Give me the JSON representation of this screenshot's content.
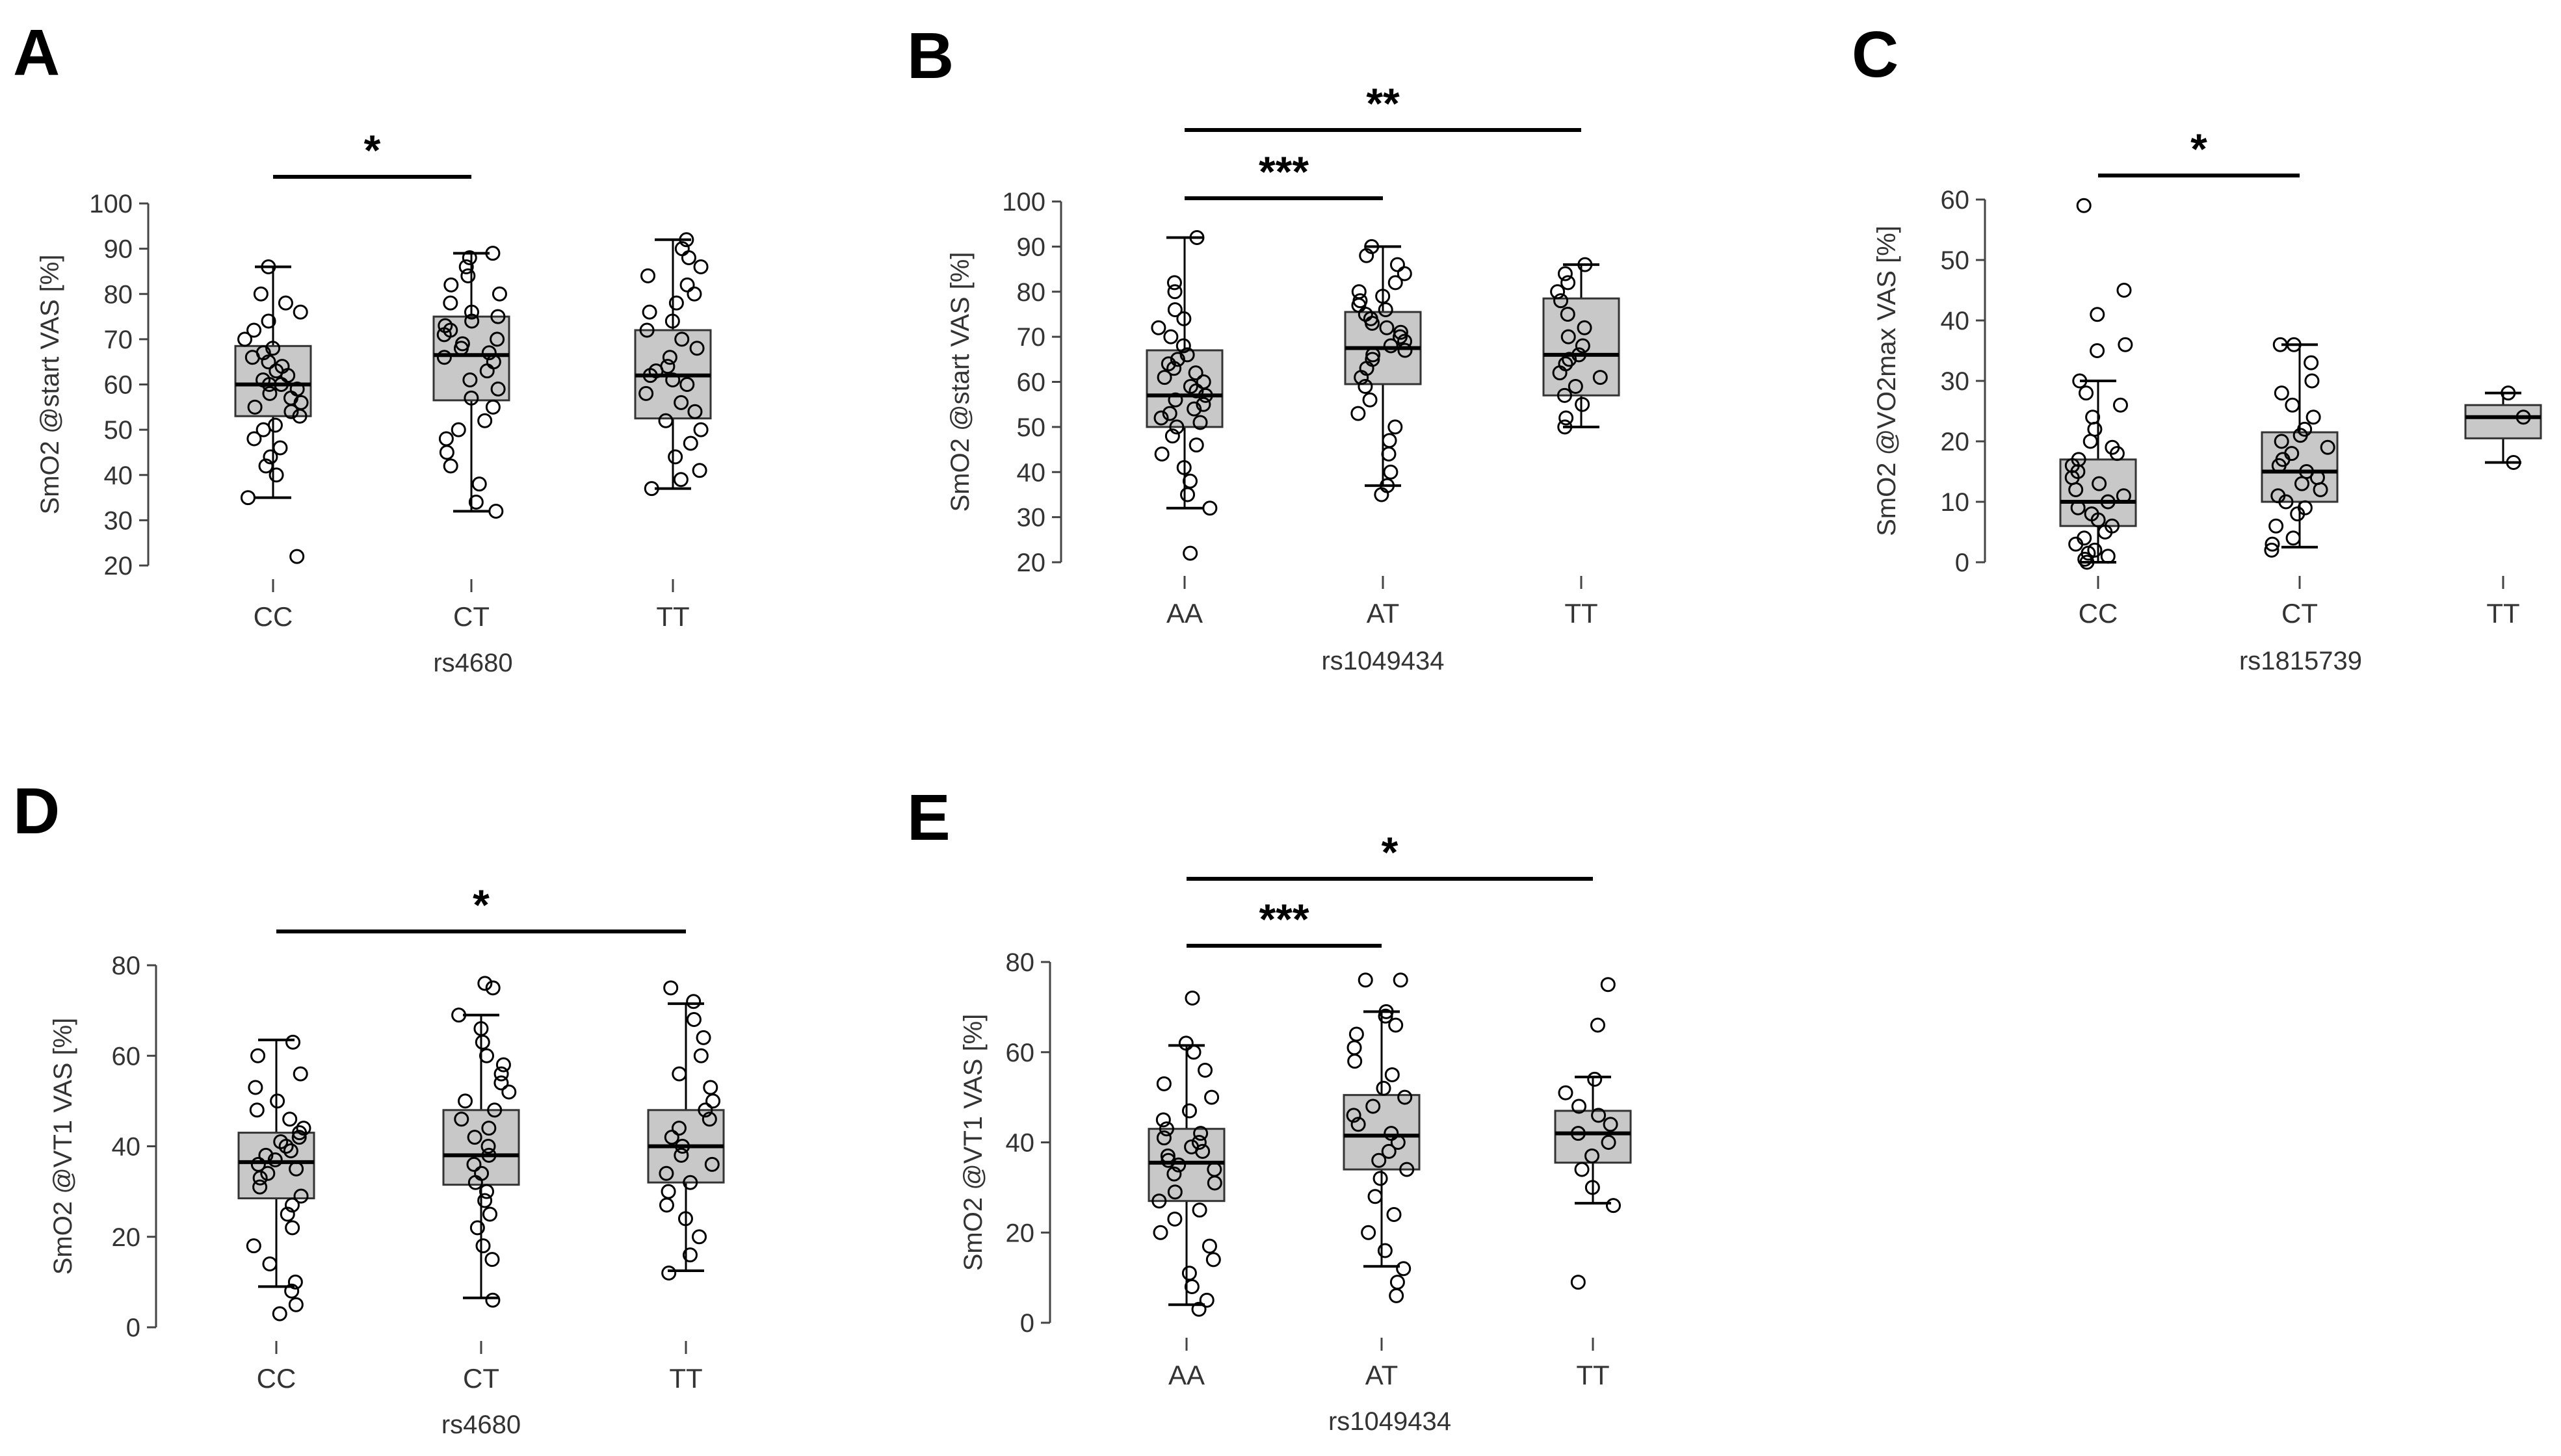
{
  "figure": {
    "background": "#ffffff",
    "box_fill": "#c8c8c8"
  },
  "chart_data": [
    {
      "panel": "A",
      "type": "box",
      "xlabel": "rs4680",
      "ylabel": "SmO2 @start VAS [%]",
      "ylim": [
        20,
        100
      ],
      "yticks": [
        20,
        30,
        40,
        50,
        60,
        70,
        80,
        90,
        100
      ],
      "categories": [
        "CC",
        "CT",
        "TT"
      ],
      "boxes": [
        {
          "category": "CC",
          "whisker_low": 35,
          "q1": 53,
          "median": 60,
          "q3": 68.5,
          "whisker_high": 86,
          "points": [
            22,
            35,
            40,
            42,
            44,
            46,
            48,
            50,
            51,
            53,
            54,
            55,
            56,
            57,
            58,
            59,
            60,
            60,
            61,
            62,
            63,
            64,
            65,
            66,
            67,
            68,
            70,
            72,
            74,
            76,
            78,
            80,
            86
          ]
        },
        {
          "category": "CT",
          "whisker_low": 32,
          "q1": 56.5,
          "median": 66.5,
          "q3": 75,
          "whisker_high": 89,
          "points": [
            32,
            34,
            38,
            42,
            45,
            48,
            50,
            52,
            55,
            57,
            59,
            61,
            63,
            65,
            66,
            67,
            68,
            69,
            70,
            71,
            72,
            73,
            74,
            75,
            76,
            78,
            80,
            82,
            84,
            86,
            88,
            89
          ]
        },
        {
          "category": "TT",
          "whisker_low": 37,
          "q1": 52.5,
          "median": 62,
          "q3": 72,
          "whisker_high": 92,
          "points": [
            37,
            39,
            41,
            44,
            47,
            50,
            52,
            54,
            56,
            58,
            60,
            61,
            62,
            63,
            64,
            66,
            68,
            70,
            72,
            74,
            76,
            78,
            80,
            82,
            84,
            86,
            88,
            90,
            92
          ]
        }
      ],
      "significance": [
        {
          "from": "CC",
          "to": "CT",
          "label": "*"
        }
      ]
    },
    {
      "panel": "B",
      "type": "box",
      "xlabel": "rs1049434",
      "ylabel": "SmO2 @start VAS [%]",
      "ylim": [
        20,
        100
      ],
      "yticks": [
        20,
        30,
        40,
        50,
        60,
        70,
        80,
        90,
        100
      ],
      "categories": [
        "AA",
        "AT",
        "TT"
      ],
      "boxes": [
        {
          "category": "AA",
          "whisker_low": 32,
          "q1": 50,
          "median": 57,
          "q3": 67,
          "whisker_high": 92,
          "points": [
            22,
            32,
            35,
            38,
            41,
            44,
            46,
            48,
            50,
            51,
            52,
            53,
            54,
            55,
            56,
            57,
            58,
            59,
            60,
            61,
            62,
            63,
            64,
            65,
            66,
            68,
            70,
            72,
            74,
            76,
            80,
            82,
            92
          ]
        },
        {
          "category": "AT",
          "whisker_low": 37,
          "q1": 59.5,
          "median": 67.5,
          "q3": 75.5,
          "whisker_high": 90,
          "points": [
            35,
            37,
            40,
            44,
            47,
            50,
            53,
            56,
            59,
            61,
            63,
            65,
            66,
            67,
            68,
            69,
            70,
            71,
            72,
            73,
            74,
            75,
            76,
            77,
            78,
            79,
            80,
            82,
            84,
            86,
            88,
            90
          ]
        },
        {
          "category": "TT",
          "whisker_low": 50,
          "q1": 57,
          "median": 66,
          "q3": 78.5,
          "whisker_high": 86,
          "points": [
            50,
            52,
            55,
            57,
            59,
            61,
            62,
            64,
            65,
            66,
            68,
            70,
            72,
            75,
            78,
            80,
            82,
            84,
            86
          ]
        }
      ],
      "significance": [
        {
          "from": "AA",
          "to": "AT",
          "label": "***"
        },
        {
          "from": "AA",
          "to": "TT",
          "label": "**"
        }
      ]
    },
    {
      "panel": "C",
      "type": "box",
      "xlabel": "rs1815739",
      "ylabel": "SmO2 @VO2max VAS [%]",
      "ylim": [
        0,
        60
      ],
      "yticks": [
        0,
        10,
        20,
        30,
        40,
        50,
        60
      ],
      "categories": [
        "CC",
        "CT",
        "TT"
      ],
      "boxes": [
        {
          "category": "CC",
          "whisker_low": 0,
          "q1": 6,
          "median": 10,
          "q3": 17,
          "whisker_high": 30,
          "points": [
            0,
            0.5,
            1,
            1.5,
            2,
            3,
            4,
            5,
            6,
            7,
            8,
            9,
            10,
            11,
            12,
            13,
            14,
            15,
            16,
            17,
            18,
            19,
            20,
            22,
            24,
            26,
            28,
            30,
            35,
            36,
            41,
            45,
            59
          ]
        },
        {
          "category": "CT",
          "whisker_low": 2.5,
          "q1": 10,
          "median": 15,
          "q3": 21.5,
          "whisker_high": 36,
          "points": [
            2,
            3,
            4,
            6,
            8,
            9,
            10,
            11,
            12,
            13,
            14,
            15,
            16,
            17,
            18,
            19,
            20,
            21,
            22,
            24,
            26,
            28,
            30,
            33,
            36,
            36
          ]
        },
        {
          "category": "TT",
          "whisker_low": 16.5,
          "q1": 20.5,
          "median": 24,
          "q3": 26,
          "whisker_high": 28,
          "points": [
            16.5,
            24,
            28
          ]
        }
      ],
      "significance": [
        {
          "from": "CC",
          "to": "CT",
          "label": "*"
        }
      ]
    },
    {
      "panel": "D",
      "type": "box",
      "xlabel": "rs4680",
      "ylabel": "SmO2 @VT1 VAS [%]",
      "ylim": [
        0,
        80
      ],
      "yticks": [
        0,
        20,
        40,
        60,
        80
      ],
      "categories": [
        "CC",
        "CT",
        "TT"
      ],
      "boxes": [
        {
          "category": "CC",
          "whisker_low": 9,
          "q1": 28.5,
          "median": 36.5,
          "q3": 43,
          "whisker_high": 63.5,
          "points": [
            3,
            5,
            8,
            10,
            14,
            18,
            22,
            25,
            27,
            29,
            31,
            33,
            34,
            35,
            36,
            37,
            38,
            39,
            40,
            41,
            42,
            43,
            44,
            46,
            48,
            50,
            53,
            56,
            60,
            63
          ]
        },
        {
          "category": "CT",
          "whisker_low": 6.5,
          "q1": 31.5,
          "median": 38,
          "q3": 48,
          "whisker_high": 69,
          "points": [
            6,
            15,
            18,
            22,
            25,
            28,
            30,
            32,
            34,
            36,
            38,
            40,
            42,
            44,
            46,
            48,
            50,
            52,
            54,
            56,
            58,
            60,
            63,
            66,
            69,
            75,
            76
          ]
        },
        {
          "category": "TT",
          "whisker_low": 12.5,
          "q1": 32,
          "median": 40,
          "q3": 48,
          "whisker_high": 71.5,
          "points": [
            12,
            16,
            20,
            24,
            27,
            30,
            32,
            34,
            36,
            38,
            40,
            42,
            44,
            46,
            48,
            50,
            53,
            56,
            60,
            64,
            68,
            72,
            75
          ]
        }
      ],
      "significance": [
        {
          "from": "CC",
          "to": "TT",
          "label": "*"
        }
      ]
    },
    {
      "panel": "E",
      "type": "box",
      "xlabel": "rs1049434",
      "ylabel": "SmO2 @VT1 VAS [%]",
      "ylim": [
        0,
        80
      ],
      "yticks": [
        0,
        20,
        40,
        60,
        80
      ],
      "categories": [
        "AA",
        "AT",
        "TT"
      ],
      "boxes": [
        {
          "category": "AA",
          "whisker_low": 4,
          "q1": 27,
          "median": 35.5,
          "q3": 43,
          "whisker_high": 61.5,
          "points": [
            3,
            5,
            8,
            11,
            14,
            17,
            20,
            23,
            25,
            27,
            29,
            31,
            33,
            34,
            35,
            36,
            37,
            38,
            39,
            40,
            41,
            42,
            43,
            45,
            47,
            50,
            53,
            56,
            60,
            62,
            72
          ]
        },
        {
          "category": "AT",
          "whisker_low": 12.5,
          "q1": 34,
          "median": 41.5,
          "q3": 50.5,
          "whisker_high": 69,
          "points": [
            6,
            9,
            12,
            16,
            20,
            24,
            28,
            32,
            34,
            36,
            38,
            40,
            42,
            44,
            46,
            48,
            50,
            52,
            55,
            58,
            61,
            64,
            66,
            68,
            69,
            76,
            76
          ]
        },
        {
          "category": "TT",
          "whisker_low": 26.5,
          "q1": 35.5,
          "median": 42,
          "q3": 47,
          "whisker_high": 54.5,
          "points": [
            9,
            26,
            30,
            34,
            37,
            40,
            42,
            44,
            46,
            48,
            51,
            54,
            66,
            75
          ]
        }
      ],
      "significance": [
        {
          "from": "AA",
          "to": "AT",
          "label": "***"
        },
        {
          "from": "AA",
          "to": "TT",
          "label": "*"
        }
      ]
    }
  ]
}
